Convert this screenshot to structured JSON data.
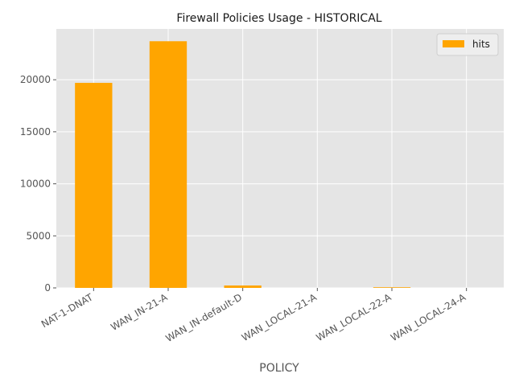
{
  "chart_data": {
    "type": "bar",
    "title": "Firewall Policies Usage - HISTORICAL",
    "xlabel": "POLICY",
    "ylabel": "",
    "categories": [
      "NAT-1-DNAT",
      "WAN_IN-21-A",
      "WAN_IN-default-D",
      "WAN_LOCAL-21-A",
      "WAN_LOCAL-22-A",
      "WAN_LOCAL-24-A"
    ],
    "series": [
      {
        "name": "hits",
        "values": [
          19700,
          23700,
          230,
          0,
          60,
          0
        ],
        "color": "#ffa500"
      }
    ],
    "yticks": [
      "0",
      "5000",
      "10000",
      "15000",
      "20000"
    ],
    "ytick_values": [
      0,
      5000,
      10000,
      15000,
      20000
    ],
    "ylim": [
      0,
      24880
    ],
    "grid": true,
    "legend_position": "top-right",
    "background_color": "#e5e5e5",
    "grid_color": "#ffffff"
  }
}
